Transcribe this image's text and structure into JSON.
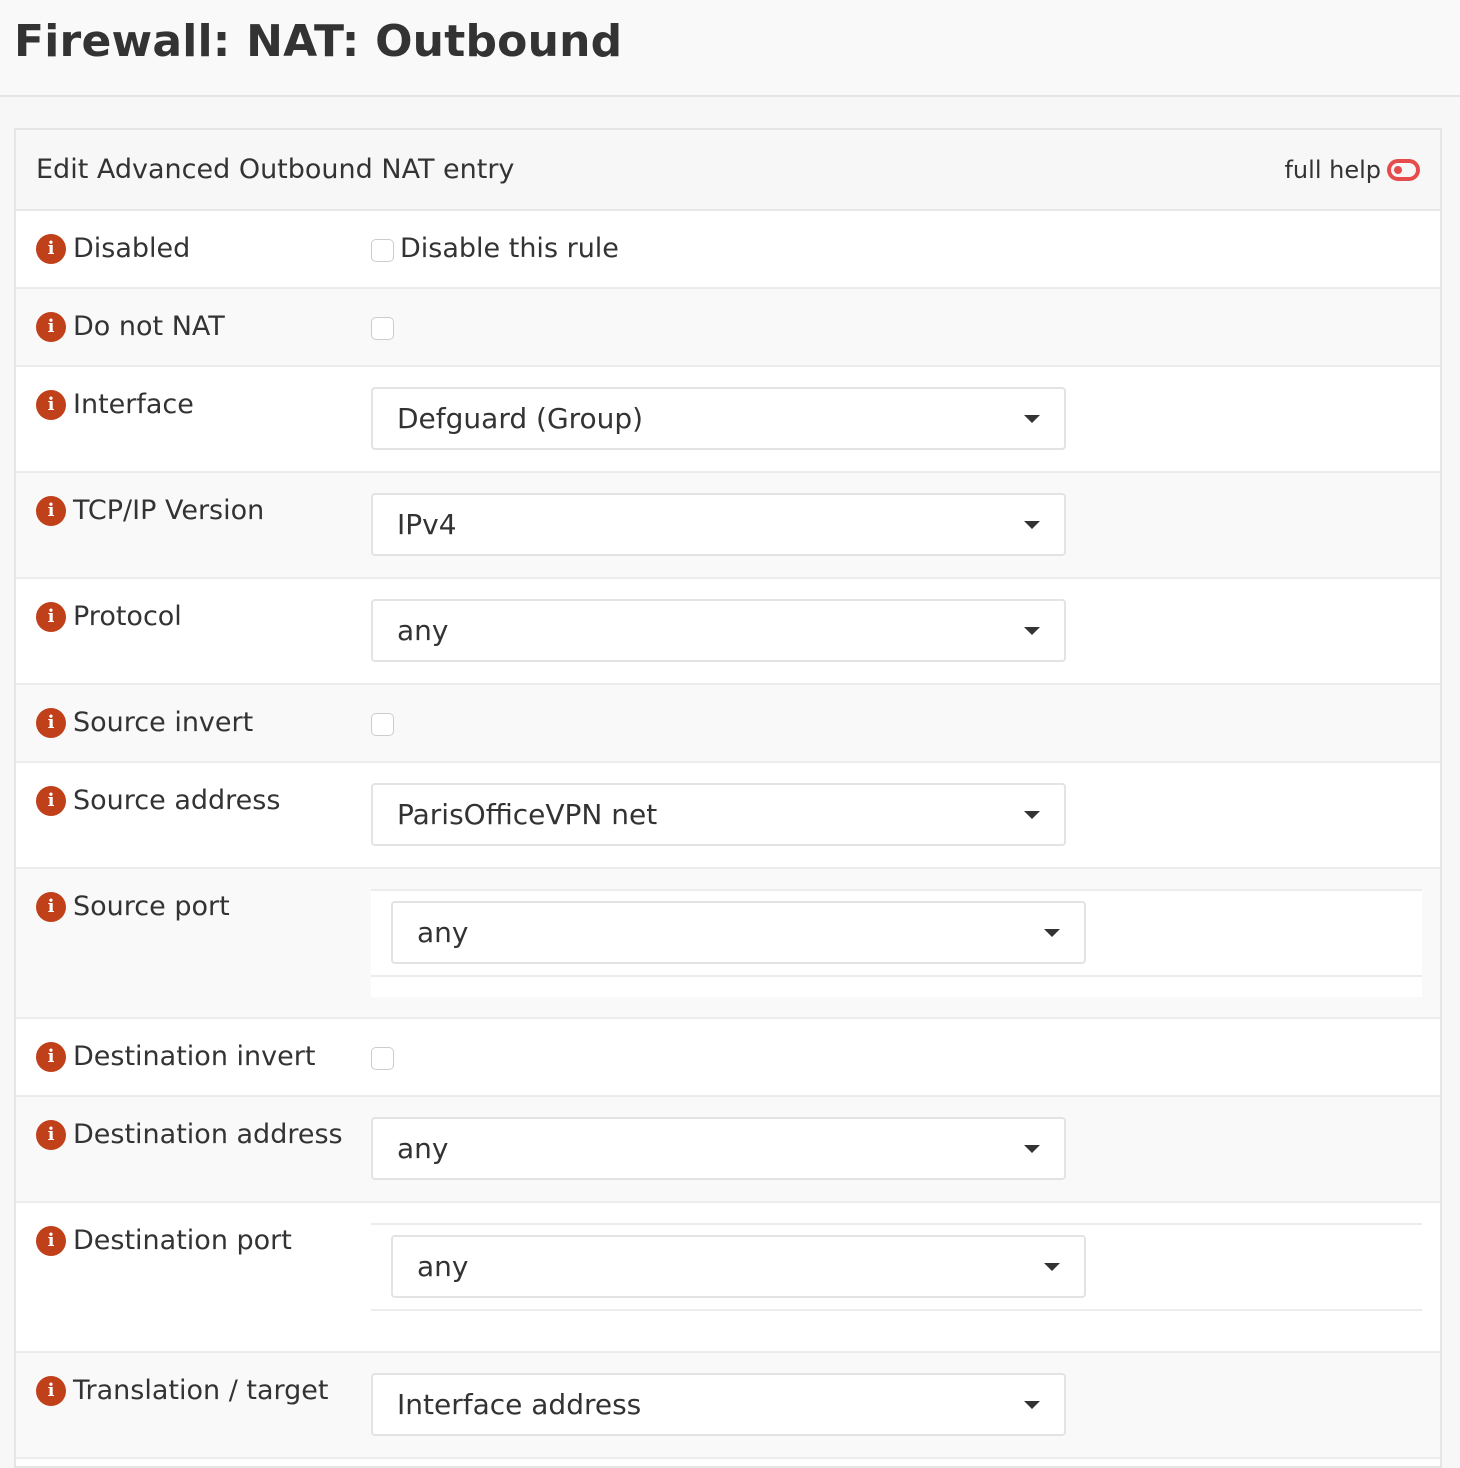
{
  "page_title": "Firewall: NAT: Outbound",
  "panel": {
    "title": "Edit Advanced Outbound NAT entry",
    "full_help_label": "full help",
    "full_help_enabled": false
  },
  "colors": {
    "info_icon": "#c0401a",
    "toggle": "#e74c4c"
  },
  "fields": {
    "disabled": {
      "label": "Disabled",
      "checkbox_label": "Disable this rule",
      "checked": false
    },
    "do_not_nat": {
      "label": "Do not NAT",
      "checked": false
    },
    "interface": {
      "label": "Interface",
      "value": "Defguard (Group)"
    },
    "tcpip_version": {
      "label": "TCP/IP Version",
      "value": "IPv4"
    },
    "protocol": {
      "label": "Protocol",
      "value": "any"
    },
    "source_invert": {
      "label": "Source invert",
      "checked": false
    },
    "source_address": {
      "label": "Source address",
      "value": "ParisOfficeVPN net"
    },
    "source_port": {
      "label": "Source port",
      "value": "any"
    },
    "destination_invert": {
      "label": "Destination invert",
      "checked": false
    },
    "destination_address": {
      "label": "Destination address",
      "value": "any"
    },
    "destination_port": {
      "label": "Destination port",
      "value": "any"
    },
    "translation_target": {
      "label": "Translation / target",
      "value": "Interface address"
    }
  }
}
